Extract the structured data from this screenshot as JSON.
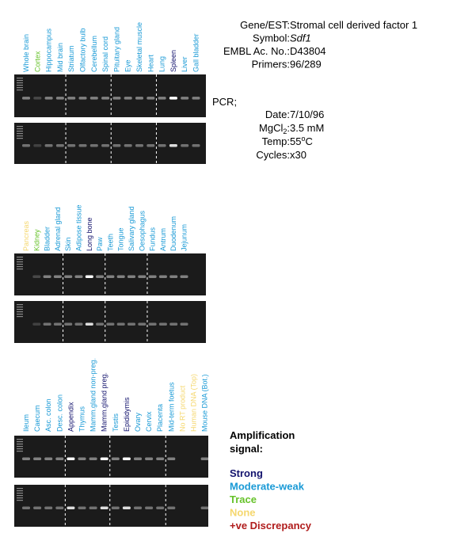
{
  "panels": [
    {
      "lanes": [
        {
          "label": "Whole brain",
          "color": "#1a9ad6"
        },
        {
          "label": "Cortex",
          "color": "#66c22a"
        },
        {
          "label": "Hippocampus",
          "color": "#1a9ad6"
        },
        {
          "label": "Mid brain",
          "color": "#1a9ad6"
        },
        {
          "label": "Striatum",
          "color": "#1a9ad6"
        },
        {
          "label": "Olfactory bulb",
          "color": "#1a9ad6"
        },
        {
          "label": "Cerebellum",
          "color": "#1a9ad6"
        },
        {
          "label": "Spinal cord",
          "color": "#1a9ad6"
        },
        {
          "label": "Pituitary gland",
          "color": "#1a9ad6"
        },
        {
          "label": "Eye",
          "color": "#1a9ad6"
        },
        {
          "label": "Skeletal muscle",
          "color": "#1a9ad6"
        },
        {
          "label": "Heart",
          "color": "#1a9ad6"
        },
        {
          "label": "Lung",
          "color": "#1a9ad6"
        },
        {
          "label": "Spleen",
          "color": "#14146e"
        },
        {
          "label": "Liver",
          "color": "#1a9ad6"
        },
        {
          "label": "Gall bladder",
          "color": "#1a9ad6"
        }
      ]
    },
    {
      "lanes": [
        {
          "label": "Pancreas",
          "color": "#f5d76e"
        },
        {
          "label": "Kidney",
          "color": "#66c22a"
        },
        {
          "label": "Bladder",
          "color": "#1a9ad6"
        },
        {
          "label": "Adrenal gland",
          "color": "#1a9ad6"
        },
        {
          "label": "Skin",
          "color": "#1a9ad6"
        },
        {
          "label": "Adipose tissue",
          "color": "#1a9ad6"
        },
        {
          "label": "Long bone",
          "color": "#14146e"
        },
        {
          "label": "Paw",
          "color": "#1a9ad6"
        },
        {
          "label": "Teeth",
          "color": "#1a9ad6"
        },
        {
          "label": "Tongue",
          "color": "#1a9ad6"
        },
        {
          "label": "Salivary gland",
          "color": "#1a9ad6"
        },
        {
          "label": "Oesophagus",
          "color": "#1a9ad6"
        },
        {
          "label": "Fundus",
          "color": "#1a9ad6"
        },
        {
          "label": "Antrum",
          "color": "#1a9ad6"
        },
        {
          "label": "Duodenum",
          "color": "#1a9ad6"
        },
        {
          "label": "Jejunum",
          "color": "#1a9ad6"
        }
      ]
    },
    {
      "lanes": [
        {
          "label": "Ileum",
          "color": "#1a9ad6"
        },
        {
          "label": "Caecum",
          "color": "#1a9ad6"
        },
        {
          "label": "Asc. colon",
          "color": "#1a9ad6"
        },
        {
          "label": "Desc. colon",
          "color": "#1a9ad6"
        },
        {
          "label": "Appendix",
          "color": "#14146e"
        },
        {
          "label": "Thymus",
          "color": "#1a9ad6"
        },
        {
          "label": "Mamm.gland non-preg.",
          "color": "#1a9ad6"
        },
        {
          "label": "Mamm.gland preg.",
          "color": "#14146e"
        },
        {
          "label": "Testis",
          "color": "#1a9ad6"
        },
        {
          "label": "Epididymis",
          "color": "#14146e"
        },
        {
          "label": "Ovary",
          "color": "#1a9ad6"
        },
        {
          "label": "Cervix",
          "color": "#1a9ad6"
        },
        {
          "label": "Placenta",
          "color": "#1a9ad6"
        },
        {
          "label": "Mid-term foetus",
          "color": "#1a9ad6"
        },
        {
          "label": "No RT product",
          "color": "#f5d76e"
        },
        {
          "label": "Human DNA (Top)",
          "color": "#f5d76e"
        },
        {
          "label": "Mouse DNA (Bot.)",
          "color": "#1a9ad6"
        }
      ]
    }
  ],
  "info": {
    "rows": [
      {
        "key": "Gene/EST:",
        "value": "Stromal cell derived factor 1"
      },
      {
        "key": "Symbol:",
        "value": "Sdf1",
        "value_style": "italic"
      },
      {
        "key": "EMBL Ac. No.:",
        "value": "D43804"
      },
      {
        "key": "Primers:",
        "value": "96/289"
      }
    ],
    "pcr_label": "PCR;",
    "pcr_rows": [
      {
        "key": "Date:",
        "value": "7/10/96"
      },
      {
        "key": "MgCl",
        "key_sub": "2",
        "key_end": ":",
        "value": "3.5 mM"
      },
      {
        "key": "Temp:",
        "value": "55",
        "value_sup": "o",
        "value_end": "C"
      },
      {
        "key": "Cycles:",
        "value": "x30"
      }
    ]
  },
  "legend": {
    "title_line1": "Amplification",
    "title_line2": "signal:",
    "items": [
      {
        "label": "Strong",
        "color": "#14146e"
      },
      {
        "label": "Moderate-weak",
        "color": "#1a9ad6"
      },
      {
        "label": "Trace",
        "color": "#66c22a"
      },
      {
        "label": "None",
        "color": "#f5d76e"
      },
      {
        "label": "+ve Discrepancy",
        "color": "#b01c1c"
      }
    ]
  }
}
